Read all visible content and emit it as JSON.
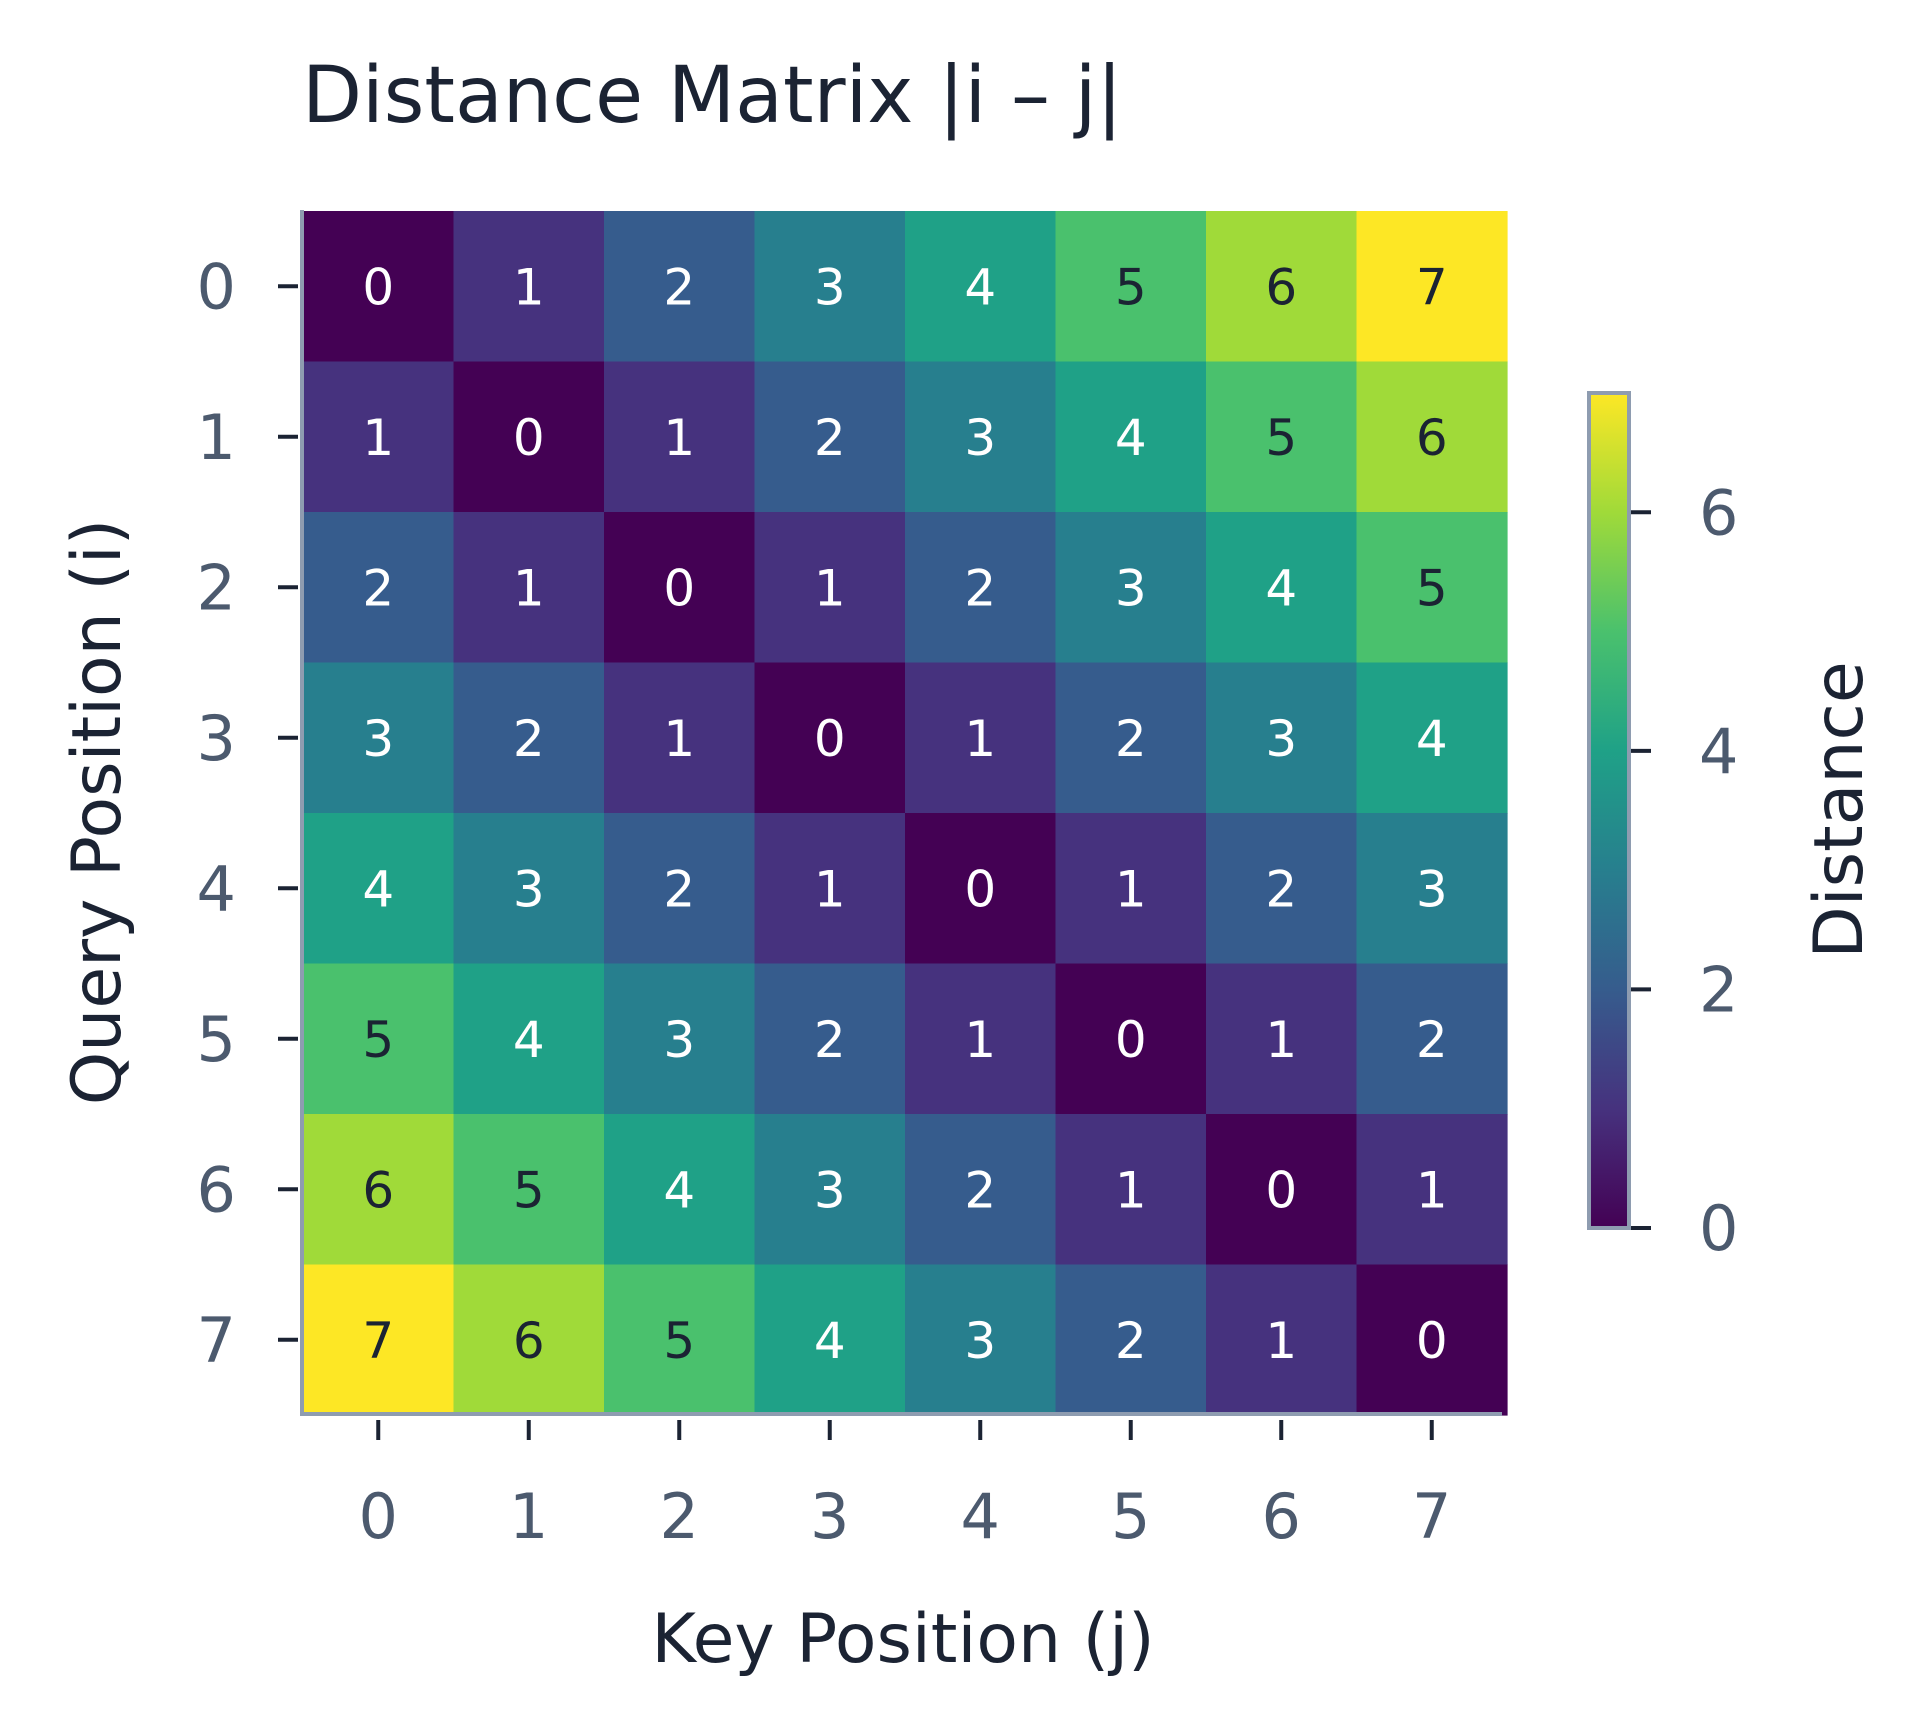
{
  "chart_data": {
    "type": "heatmap",
    "title": "Distance Matrix |i – j|",
    "xlabel": "Key Position (j)",
    "ylabel": "Query Position (i)",
    "x_ticks": [
      "0",
      "1",
      "2",
      "3",
      "4",
      "5",
      "6",
      "7"
    ],
    "y_ticks": [
      "0",
      "1",
      "2",
      "3",
      "4",
      "5",
      "6",
      "7"
    ],
    "values": [
      [
        0,
        1,
        2,
        3,
        4,
        5,
        6,
        7
      ],
      [
        1,
        0,
        1,
        2,
        3,
        4,
        5,
        6
      ],
      [
        2,
        1,
        0,
        1,
        2,
        3,
        4,
        5
      ],
      [
        3,
        2,
        1,
        0,
        1,
        2,
        3,
        4
      ],
      [
        4,
        3,
        2,
        1,
        0,
        1,
        2,
        3
      ],
      [
        5,
        4,
        3,
        2,
        1,
        0,
        1,
        2
      ],
      [
        6,
        5,
        4,
        3,
        2,
        1,
        0,
        1
      ],
      [
        7,
        6,
        5,
        4,
        3,
        2,
        1,
        0
      ]
    ],
    "colormap": "viridis",
    "vmin": 0,
    "vmax": 7,
    "annotated": true,
    "colorbar": {
      "label": "Distance",
      "ticks": [
        0,
        2,
        4,
        6
      ],
      "tick_labels": [
        "0",
        "2",
        "4",
        "6"
      ],
      "placement": "right"
    },
    "colors": {
      "viridis": [
        "#440154",
        "#46327e",
        "#365c8d",
        "#277f8e",
        "#1fa187",
        "#4ac16d",
        "#a0da39",
        "#fde725"
      ],
      "axis": "#8e9cb0",
      "text_dark": "#1b2333",
      "text_light": "#ffffff"
    }
  }
}
